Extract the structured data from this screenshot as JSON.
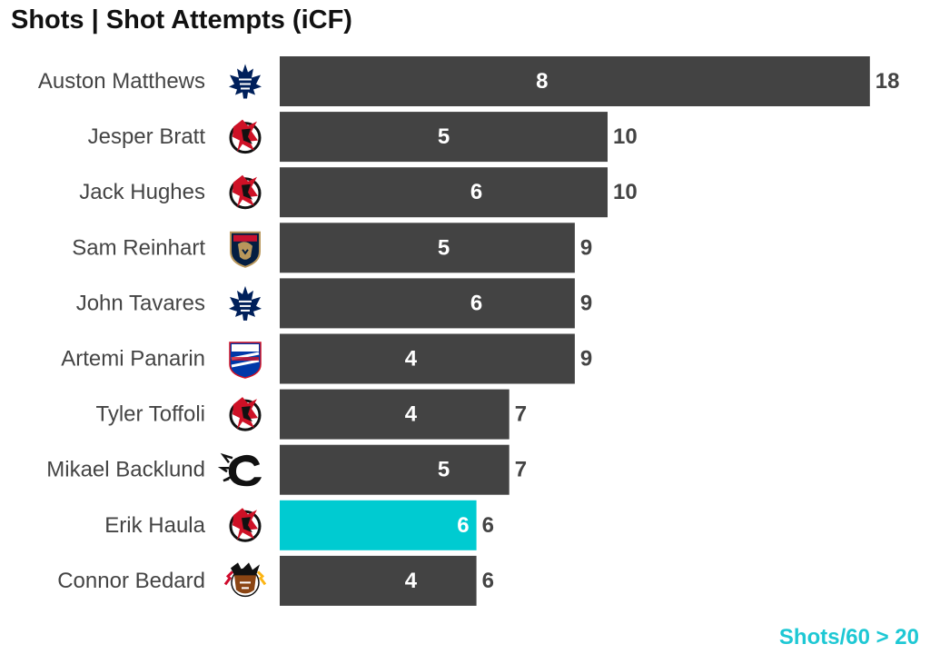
{
  "title": "Shots | Shot Attempts (iCF)",
  "footnote": "Shots/60 > 20",
  "colors": {
    "bar": "#434343",
    "highlight": "#00cbd1",
    "label": "#444444",
    "inner_text": "#ffffff",
    "footnote": "#1ec8d4"
  },
  "chart_data": {
    "type": "bar",
    "orientation": "horizontal",
    "title": "Shots | Shot Attempts (iCF)",
    "categories": [
      "Auston Matthews",
      "Jesper Bratt",
      "Jack Hughes",
      "Sam Reinhart",
      "John Tavares",
      "Artemi Panarin",
      "Tyler Toffoli",
      "Mikael Backlund",
      "Erik Haula",
      "Connor Bedard"
    ],
    "teams": [
      "toronto-maple-leafs",
      "new-jersey-devils",
      "new-jersey-devils",
      "florida-panthers",
      "toronto-maple-leafs",
      "new-york-rangers",
      "new-jersey-devils",
      "calgary-flames",
      "new-jersey-devils",
      "chicago-blackhawks"
    ],
    "series": [
      {
        "name": "Shots",
        "values": [
          8,
          5,
          6,
          5,
          6,
          4,
          4,
          5,
          6,
          4
        ]
      },
      {
        "name": "Shot Attempts (iCF)",
        "values": [
          18,
          10,
          10,
          9,
          9,
          9,
          7,
          7,
          6,
          6
        ]
      }
    ],
    "highlighted": [
      "Erik Haula"
    ],
    "xlim": [
      0,
      18
    ],
    "grid": false,
    "legend": "none"
  }
}
